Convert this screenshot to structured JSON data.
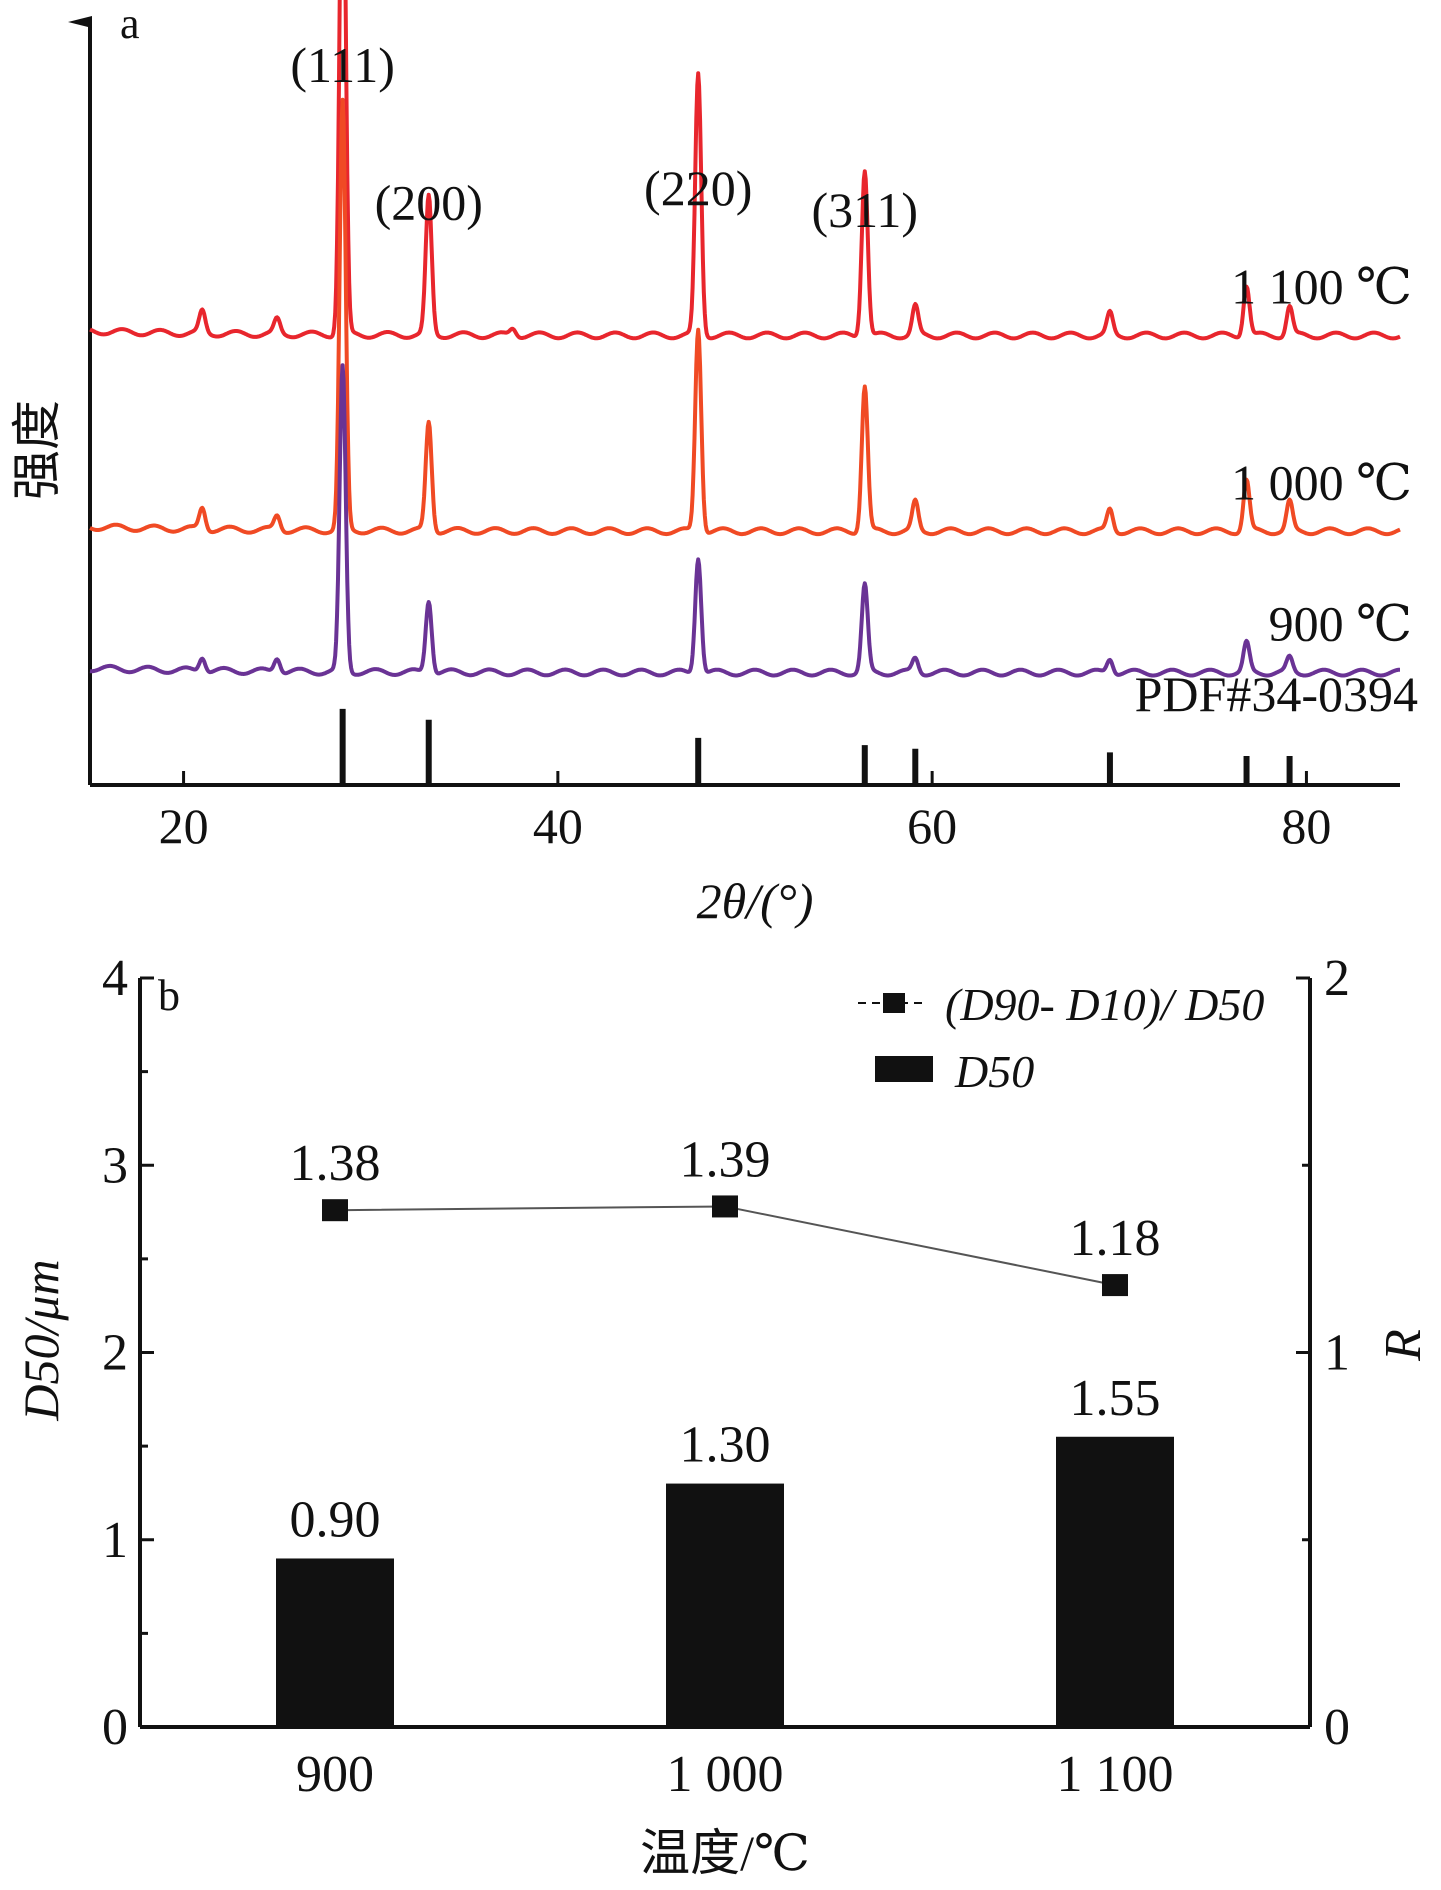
{
  "chart_data": [
    {
      "type": "line",
      "panel_label": "a",
      "xlabel": "2θ/(°)",
      "ylabel": "强度",
      "xlim": [
        15,
        85
      ],
      "x_ticks": [
        "20",
        "40",
        "60",
        "80"
      ],
      "peak_labels": [
        {
          "text": "(111)",
          "x": 28.5
        },
        {
          "text": "(200)",
          "x": 33.1
        },
        {
          "text": "(220)",
          "x": 47.5
        },
        {
          "text": "(311)",
          "x": 56.4
        }
      ],
      "series": [
        {
          "name": "1 100 ℃",
          "color": "#e8262d",
          "baseline": 0.62,
          "peaks": [
            [
              21.0,
              0.03
            ],
            [
              25.0,
              0.02
            ],
            [
              28.5,
              0.74
            ],
            [
              33.1,
              0.19
            ],
            [
              37.6,
              0.01
            ],
            [
              47.5,
              0.36
            ],
            [
              56.4,
              0.23
            ],
            [
              59.1,
              0.04
            ],
            [
              69.5,
              0.03
            ],
            [
              76.8,
              0.07
            ],
            [
              79.1,
              0.04
            ]
          ]
        },
        {
          "name": "1 000 ℃",
          "color": "#f04a24",
          "baseline": 0.35,
          "peaks": [
            [
              21.0,
              0.03
            ],
            [
              25.0,
              0.02
            ],
            [
              28.5,
              0.59
            ],
            [
              33.1,
              0.15
            ],
            [
              47.5,
              0.28
            ],
            [
              56.4,
              0.2
            ],
            [
              59.1,
              0.04
            ],
            [
              69.5,
              0.03
            ],
            [
              76.8,
              0.07
            ],
            [
              79.1,
              0.04
            ]
          ]
        },
        {
          "name": "900 ℃",
          "color": "#6a3395",
          "baseline": 0.155,
          "peaks": [
            [
              21.0,
              0.02
            ],
            [
              25.0,
              0.02
            ],
            [
              28.5,
              0.42
            ],
            [
              33.1,
              0.1
            ],
            [
              47.5,
              0.16
            ],
            [
              56.4,
              0.12
            ],
            [
              59.1,
              0.02
            ],
            [
              69.5,
              0.02
            ],
            [
              76.8,
              0.04
            ],
            [
              79.1,
              0.02
            ]
          ]
        }
      ],
      "reference": {
        "name": "PDF#34-0394",
        "lines": [
          [
            28.5,
            0.105
          ],
          [
            33.1,
            0.09
          ],
          [
            47.5,
            0.065
          ],
          [
            56.4,
            0.055
          ],
          [
            59.1,
            0.05
          ],
          [
            69.5,
            0.045
          ],
          [
            76.8,
            0.04
          ],
          [
            79.1,
            0.04
          ]
        ]
      }
    },
    {
      "type": "bar",
      "panel_label": "b",
      "xlabel": "温度/℃",
      "ylabel": "D50/μm",
      "ylabel_right": "R",
      "categories": [
        "900",
        "1 000",
        "1 100"
      ],
      "ylim": [
        0,
        4
      ],
      "y_ticks": [
        "0",
        "1",
        "2",
        "3",
        "4"
      ],
      "ylim_right": [
        0,
        2
      ],
      "y_ticks_right": [
        "0",
        "1",
        "2"
      ],
      "series": [
        {
          "name": "D50",
          "kind": "bar",
          "values": [
            0.9,
            1.3,
            1.55
          ],
          "labels": [
            "0.90",
            "1.30",
            "1.55"
          ]
        },
        {
          "name": "(D90- D10)/ D50",
          "kind": "line",
          "axis": "right",
          "values": [
            1.38,
            1.39,
            1.18
          ],
          "labels": [
            "1.38",
            "1.39",
            "1.18"
          ]
        }
      ],
      "legend_position": "top-right"
    }
  ]
}
